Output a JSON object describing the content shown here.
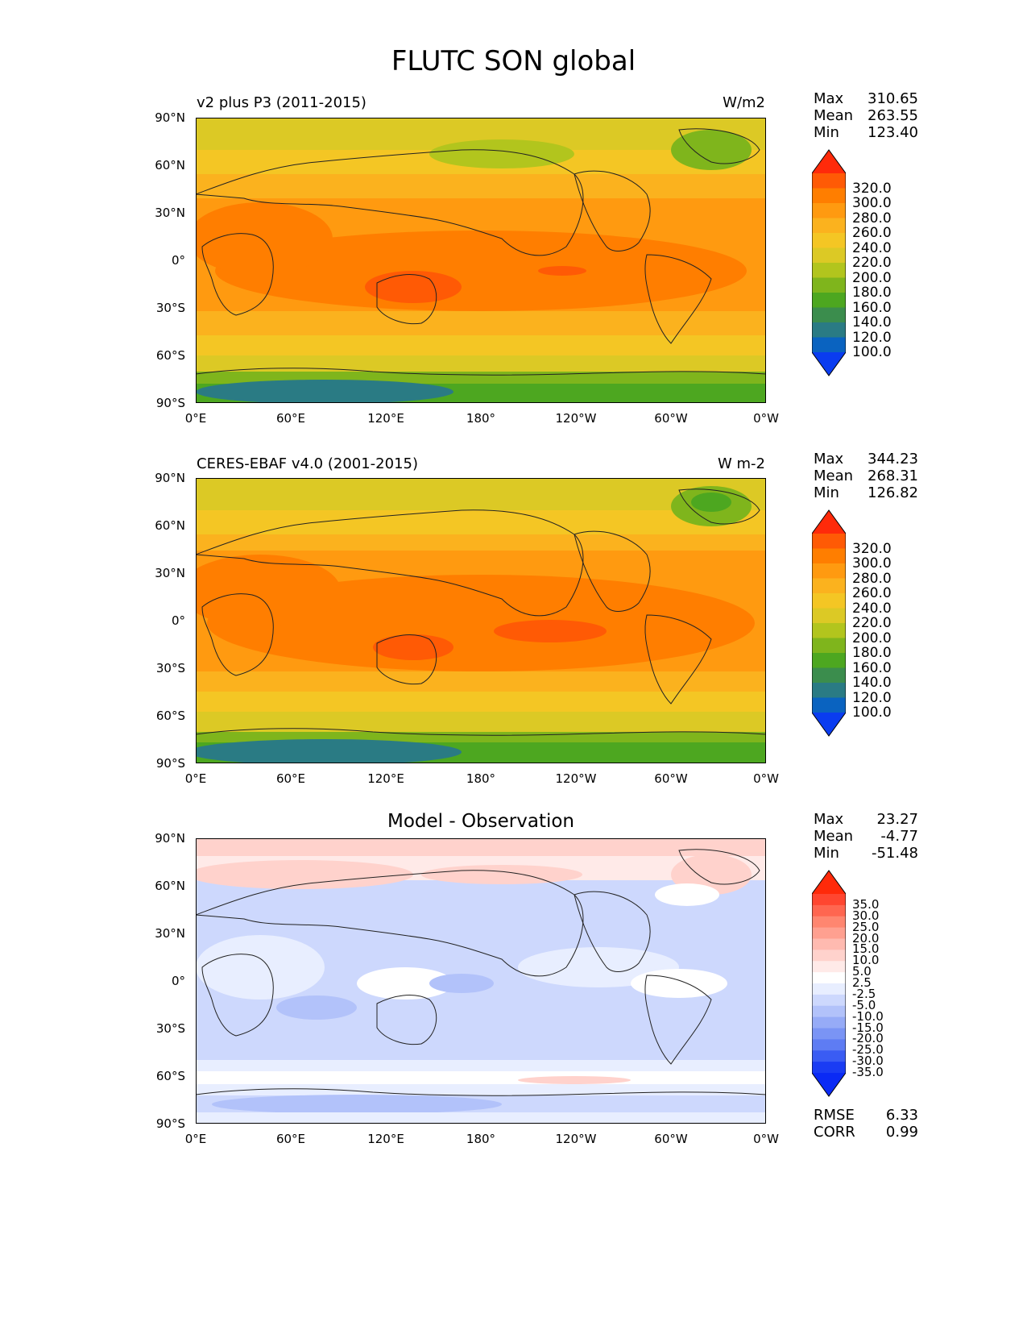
{
  "title": "FLUTC SON global",
  "lat_ticks": [
    "90°N",
    "60°N",
    "30°N",
    "0°",
    "30°S",
    "60°S",
    "90°S"
  ],
  "lon_ticks": [
    "0°E",
    "60°E",
    "120°E",
    "180°",
    "120°W",
    "60°W",
    "0°W"
  ],
  "panels": [
    {
      "left_title": "v2 plus P3 (2011-2015)",
      "right_title": "W/m2",
      "center_title": "",
      "stats": [
        {
          "name": "Max",
          "value": "310.65"
        },
        {
          "name": "Mean",
          "value": "263.55"
        },
        {
          "name": "Min",
          "value": "123.40"
        }
      ],
      "colorbar_levels": [
        "320.0",
        "300.0",
        "280.0",
        "260.0",
        "240.0",
        "220.0",
        "200.0",
        "180.0",
        "160.0",
        "140.0",
        "120.0",
        "100.0"
      ],
      "colorbar_colors": [
        "#ff2a0a",
        "#ff5a05",
        "#ff7e00",
        "#ff9a10",
        "#fbb21e",
        "#f4c624",
        "#dcc925",
        "#b2c51d",
        "#7fb51c",
        "#4da720",
        "#3b8d4d",
        "#2a7b84",
        "#0a63c0",
        "#0a3cf0"
      ],
      "top_cap": "#ff2a0a",
      "bottom_cap": "#0a3cf0"
    },
    {
      "left_title": "CERES-EBAF v4.0 (2001-2015)",
      "right_title": "W m-2",
      "center_title": "",
      "stats": [
        {
          "name": "Max",
          "value": "344.23"
        },
        {
          "name": "Mean",
          "value": "268.31"
        },
        {
          "name": "Min",
          "value": "126.82"
        }
      ],
      "colorbar_levels": [
        "320.0",
        "300.0",
        "280.0",
        "260.0",
        "240.0",
        "220.0",
        "200.0",
        "180.0",
        "160.0",
        "140.0",
        "120.0",
        "100.0"
      ],
      "colorbar_colors": [
        "#ff2a0a",
        "#ff5a05",
        "#ff7e00",
        "#ff9a10",
        "#fbb21e",
        "#f4c624",
        "#dcc925",
        "#b2c51d",
        "#7fb51c",
        "#4da720",
        "#3b8d4d",
        "#2a7b84",
        "#0a63c0",
        "#0a3cf0"
      ],
      "top_cap": "#ff2a0a",
      "bottom_cap": "#0a3cf0"
    },
    {
      "left_title": "",
      "right_title": "",
      "center_title": "Model - Observation",
      "stats": [
        {
          "name": "Max",
          "value": "23.27"
        },
        {
          "name": "Mean",
          "value": "-4.77"
        },
        {
          "name": "Min",
          "value": "-51.48"
        }
      ],
      "colorbar_levels": [
        "35.0",
        "30.0",
        "25.0",
        "20.0",
        "15.0",
        "10.0",
        "5.0",
        "2.5",
        "-2.5",
        "-5.0",
        "-10.0",
        "-15.0",
        "-20.0",
        "-25.0",
        "-30.0",
        "-35.0"
      ],
      "colorbar_colors": [
        "#ff2a0a",
        "#ff4630",
        "#ff6650",
        "#ff8670",
        "#ffa090",
        "#ffbab0",
        "#ffd2cc",
        "#ffeae8",
        "#ffffff",
        "#e8eeff",
        "#cdd8fd",
        "#b2c2fa",
        "#96abf7",
        "#7a94f5",
        "#5e7cf3",
        "#3a5cf3",
        "#1a3cf3",
        "#0a2af5"
      ],
      "top_cap": "#ff2a0a",
      "bottom_cap": "#0a2af5",
      "extra_stats": [
        {
          "name": "RMSE",
          "value": "6.33"
        },
        {
          "name": "CORR",
          "value": "0.99"
        }
      ]
    }
  ]
}
